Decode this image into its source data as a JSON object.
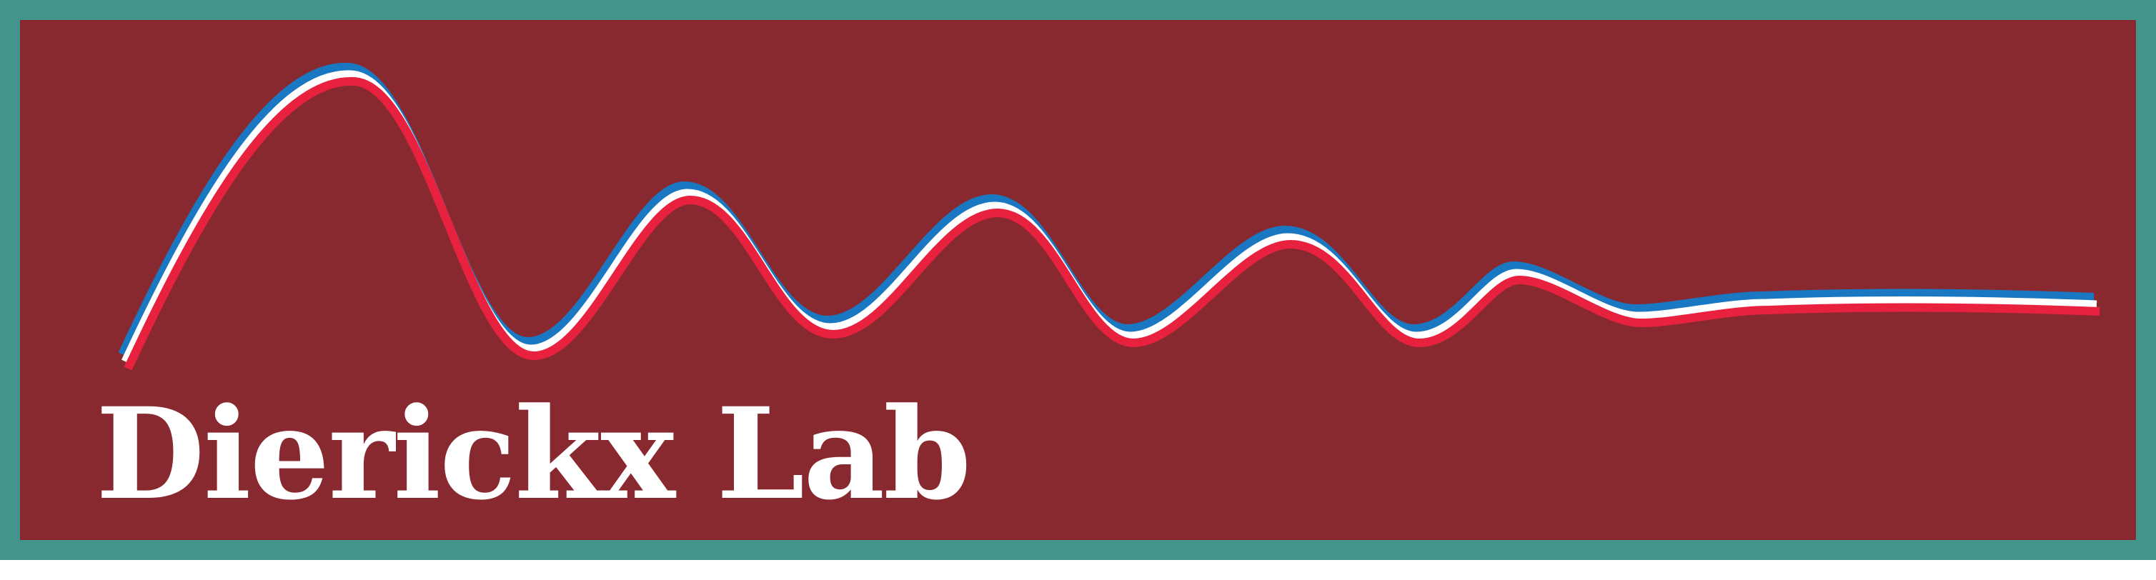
{
  "logo": {
    "title": "Dierickx Lab",
    "colors": {
      "background": "#882930",
      "border": "#43958b",
      "wave_top": "#1a78c2",
      "wave_middle": "#ffffff",
      "wave_bottom": "#e8213f",
      "text": "#ffffff"
    }
  }
}
